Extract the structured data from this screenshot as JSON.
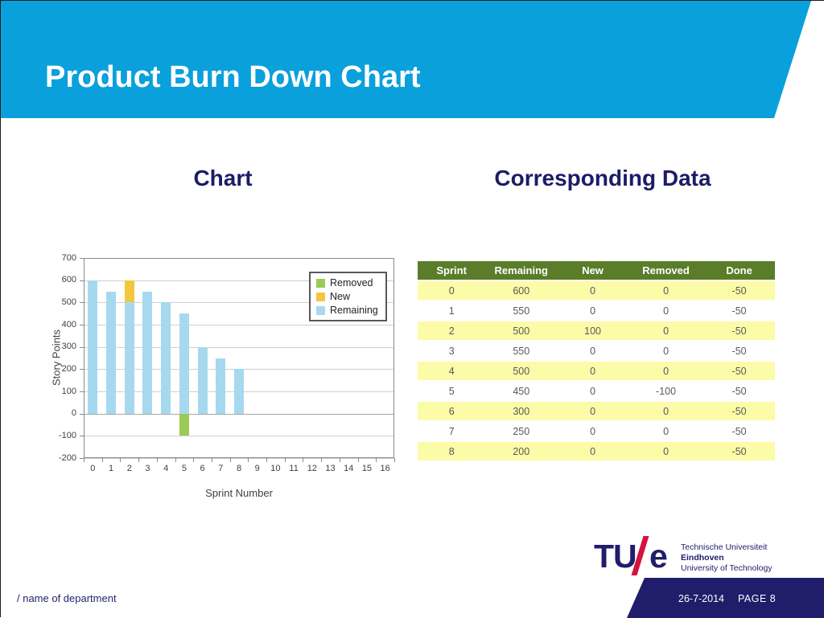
{
  "slide": {
    "title": "Product Burn Down Chart",
    "section_left": "Chart",
    "section_right": "Corresponding Data"
  },
  "chart_data": {
    "type": "bar",
    "stacked": true,
    "title": "",
    "xlabel": "Sprint Number",
    "ylabel": "Story Points",
    "ylim": [
      -200,
      700
    ],
    "y_ticks": [
      700,
      600,
      500,
      400,
      300,
      200,
      100,
      0,
      -100,
      -200
    ],
    "x_ticks": [
      "0",
      "1",
      "2",
      "3",
      "4",
      "5",
      "6",
      "7",
      "8",
      "9",
      "10",
      "11",
      "12",
      "13",
      "14",
      "15",
      "16"
    ],
    "grid": true,
    "legend_position": "top-right",
    "legend": [
      {
        "label": "Removed",
        "color": "#9bcb55"
      },
      {
        "label": "New",
        "color": "#f3c73e"
      },
      {
        "label": "Remaining",
        "color": "#a6d9ef"
      }
    ],
    "series": [
      {
        "name": "Remaining",
        "values": [
          600,
          550,
          500,
          550,
          500,
          450,
          300,
          250,
          200
        ]
      },
      {
        "name": "New",
        "values": [
          0,
          0,
          100,
          0,
          0,
          0,
          0,
          0,
          0
        ]
      },
      {
        "name": "Removed",
        "values": [
          0,
          0,
          0,
          0,
          0,
          -100,
          0,
          0,
          0
        ]
      }
    ]
  },
  "table": {
    "columns": [
      "Sprint",
      "Remaining",
      "New",
      "Removed",
      "Done"
    ],
    "rows": [
      [
        "0",
        "600",
        "0",
        "0",
        "-50"
      ],
      [
        "1",
        "550",
        "0",
        "0",
        "-50"
      ],
      [
        "2",
        "500",
        "100",
        "0",
        "-50"
      ],
      [
        "3",
        "550",
        "0",
        "0",
        "-50"
      ],
      [
        "4",
        "500",
        "0",
        "0",
        "-50"
      ],
      [
        "5",
        "450",
        "0",
        "-100",
        "-50"
      ],
      [
        "6",
        "300",
        "0",
        "0",
        "-50"
      ],
      [
        "7",
        "250",
        "0",
        "0",
        "-50"
      ],
      [
        "8",
        "200",
        "0",
        "0",
        "-50"
      ]
    ]
  },
  "logo": {
    "tu": "TU",
    "e": "e",
    "line1": "Technische Universiteit",
    "line2": "Eindhoven",
    "line3": "University of Technology"
  },
  "footer": {
    "department": "/ name of department",
    "date": "26-7-2014",
    "page": "PAGE 8"
  },
  "colors": {
    "banner_blue": "#0aa0dc",
    "navy": "#201d6b",
    "heading_navy": "#1c1c66",
    "logo_red": "#d6123f",
    "bar_remaining": "#a6d9ef",
    "bar_new": "#f3c73e",
    "bar_removed": "#9bcb55",
    "table_header_bg": "#5a7d2a",
    "table_row_yellow": "#fbfba8",
    "table_row_white": "#ffffff",
    "gridline": "#cfcfcf",
    "zero_line": "#a6a6a6"
  }
}
